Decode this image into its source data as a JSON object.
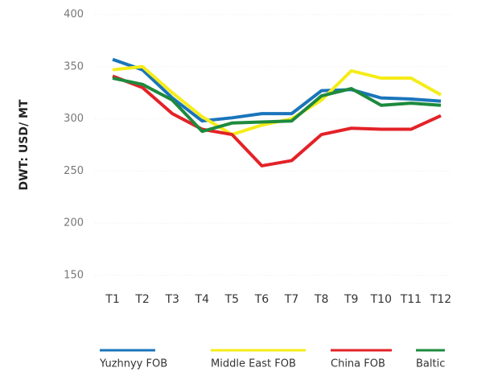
{
  "chart_data": {
    "type": "line",
    "y_label": "DWT: USD/ MT",
    "categories": [
      "T1",
      "T2",
      "T3",
      "T4",
      "T5",
      "T6",
      "T7",
      "T8",
      "T9",
      "T10",
      "T11",
      "T12"
    ],
    "ylim": [
      150,
      400
    ],
    "yticks": [
      150,
      200,
      250,
      300,
      350,
      400
    ],
    "grid": true,
    "legend": "bottom",
    "series": [
      {
        "name": "Yuzhnyy FOB",
        "color": "#1a75bb",
        "values": [
          357,
          347,
          320,
          298,
          301,
          305,
          305,
          327,
          328,
          320,
          319,
          317
        ]
      },
      {
        "name": "Middle East FOB",
        "color": "#f5ec19",
        "values": [
          347,
          350,
          325,
          302,
          285,
          294,
          300,
          318,
          346,
          339,
          339,
          323
        ]
      },
      {
        "name": "China FOB",
        "color": "#e32227",
        "values": [
          341,
          330,
          305,
          290,
          285,
          255,
          260,
          285,
          291,
          290,
          290,
          303
        ]
      },
      {
        "name": "Baltic",
        "color": "#1d8a3e",
        "values": [
          339,
          333,
          318,
          288,
          296,
          297,
          298,
          322,
          329,
          313,
          315,
          313
        ]
      }
    ]
  }
}
